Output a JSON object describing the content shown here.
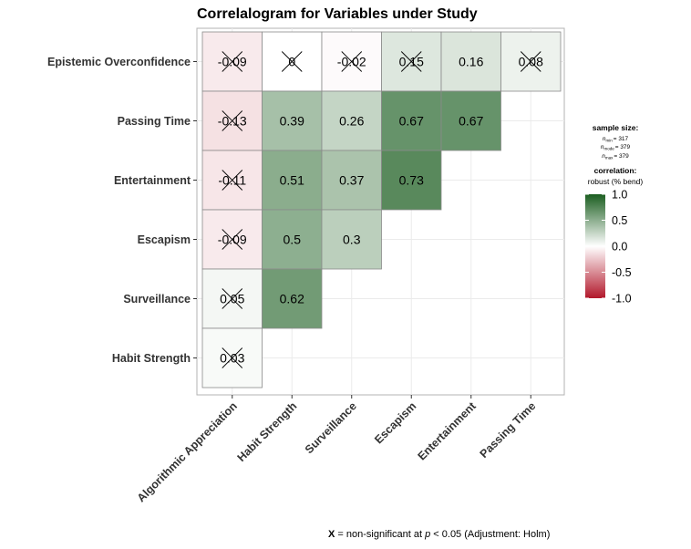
{
  "chart_data": {
    "type": "heatmap",
    "title": "Correlalogram for Variables under Study",
    "x_categories": [
      "Algorithmic Appreciation",
      "Habit Strength",
      "Surveillance",
      "Escapism",
      "Entertainment",
      "Passing Time"
    ],
    "y_categories": [
      "Epistemic Overconfidence",
      "Passing Time",
      "Entertainment",
      "Escapism",
      "Surveillance",
      "Habit Strength"
    ],
    "cells": [
      {
        "x": "Algorithmic Appreciation",
        "y": "Epistemic Overconfidence",
        "value": -0.09,
        "label": "-0.09",
        "significant": false
      },
      {
        "x": "Habit Strength",
        "y": "Epistemic Overconfidence",
        "value": 0,
        "label": "0",
        "significant": false
      },
      {
        "x": "Surveillance",
        "y": "Epistemic Overconfidence",
        "value": -0.02,
        "label": "-0.02",
        "significant": false
      },
      {
        "x": "Escapism",
        "y": "Epistemic Overconfidence",
        "value": 0.15,
        "label": "0.15",
        "significant": false
      },
      {
        "x": "Entertainment",
        "y": "Epistemic Overconfidence",
        "value": 0.16,
        "label": "0.16",
        "significant": true
      },
      {
        "x": "Passing Time",
        "y": "Epistemic Overconfidence",
        "value": 0.08,
        "label": "0.08",
        "significant": false
      },
      {
        "x": "Algorithmic Appreciation",
        "y": "Passing Time",
        "value": -0.13,
        "label": "-0.13",
        "significant": false
      },
      {
        "x": "Habit Strength",
        "y": "Passing Time",
        "value": 0.39,
        "label": "0.39",
        "significant": true
      },
      {
        "x": "Surveillance",
        "y": "Passing Time",
        "value": 0.26,
        "label": "0.26",
        "significant": true
      },
      {
        "x": "Escapism",
        "y": "Passing Time",
        "value": 0.67,
        "label": "0.67",
        "significant": true
      },
      {
        "x": "Entertainment",
        "y": "Passing Time",
        "value": 0.67,
        "label": "0.67",
        "significant": true
      },
      {
        "x": "Algorithmic Appreciation",
        "y": "Entertainment",
        "value": -0.11,
        "label": "-0.11",
        "significant": false
      },
      {
        "x": "Habit Strength",
        "y": "Entertainment",
        "value": 0.51,
        "label": "0.51",
        "significant": true
      },
      {
        "x": "Surveillance",
        "y": "Entertainment",
        "value": 0.37,
        "label": "0.37",
        "significant": true
      },
      {
        "x": "Escapism",
        "y": "Entertainment",
        "value": 0.73,
        "label": "0.73",
        "significant": true
      },
      {
        "x": "Algorithmic Appreciation",
        "y": "Escapism",
        "value": -0.09,
        "label": "-0.09",
        "significant": false
      },
      {
        "x": "Habit Strength",
        "y": "Escapism",
        "value": 0.5,
        "label": "0.5",
        "significant": true
      },
      {
        "x": "Surveillance",
        "y": "Escapism",
        "value": 0.3,
        "label": "0.3",
        "significant": true
      },
      {
        "x": "Algorithmic Appreciation",
        "y": "Surveillance",
        "value": 0.05,
        "label": "0.05",
        "significant": false
      },
      {
        "x": "Habit Strength",
        "y": "Surveillance",
        "value": 0.62,
        "label": "0.62",
        "significant": true
      },
      {
        "x": "Algorithmic Appreciation",
        "y": "Habit Strength",
        "value": 0.03,
        "label": "0.03",
        "significant": false
      }
    ],
    "color_scale": {
      "low": "#b2182b",
      "mid": "#ffffff",
      "high": "#1b5e20",
      "limits": [
        -1.0,
        1.0
      ]
    },
    "grid": true
  },
  "legend": {
    "sample_size_title": "sample size:",
    "n_min": {
      "label": "n",
      "sub": "min",
      "value": "= 317"
    },
    "n_mode": {
      "label": "n",
      "sub": "mode",
      "value": "= 379"
    },
    "n_max": {
      "label": "n",
      "sub": "max",
      "value": "= 379"
    },
    "correlation_title": "correlation:",
    "correlation_subtitle": "robust (% bend)",
    "ticks": [
      "1.0",
      "0.5",
      "0.0",
      "-0.5",
      "-1.0"
    ],
    "tick_values": [
      1.0,
      0.5,
      0.0,
      -0.5,
      -1.0
    ]
  },
  "footnote": {
    "symbol": "X",
    "text_before": " = non-significant at ",
    "p": "p",
    "text_after": " < 0.05 (Adjustment: Holm)"
  }
}
